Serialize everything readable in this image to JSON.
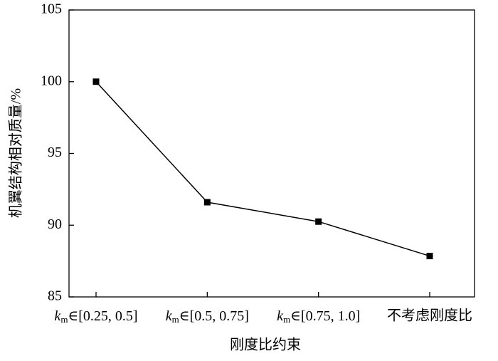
{
  "chart_data": {
    "type": "line",
    "x_label": "刚度比约束",
    "y_label": "机翼结构相对质量/%",
    "categories": [
      "km∈[0.25, 0.5]",
      "km∈[0.5, 0.75]",
      "km∈[0.75, 1.0]",
      "不考虑刚度比"
    ],
    "series": [
      {
        "name": "机翼结构相对质量",
        "color": "#000000",
        "values": [
          100,
          91.6,
          90.25,
          87.85
        ]
      }
    ],
    "ylim": [
      85,
      105
    ],
    "yticks": [
      85,
      90,
      95,
      100,
      105
    ],
    "grid": false
  }
}
